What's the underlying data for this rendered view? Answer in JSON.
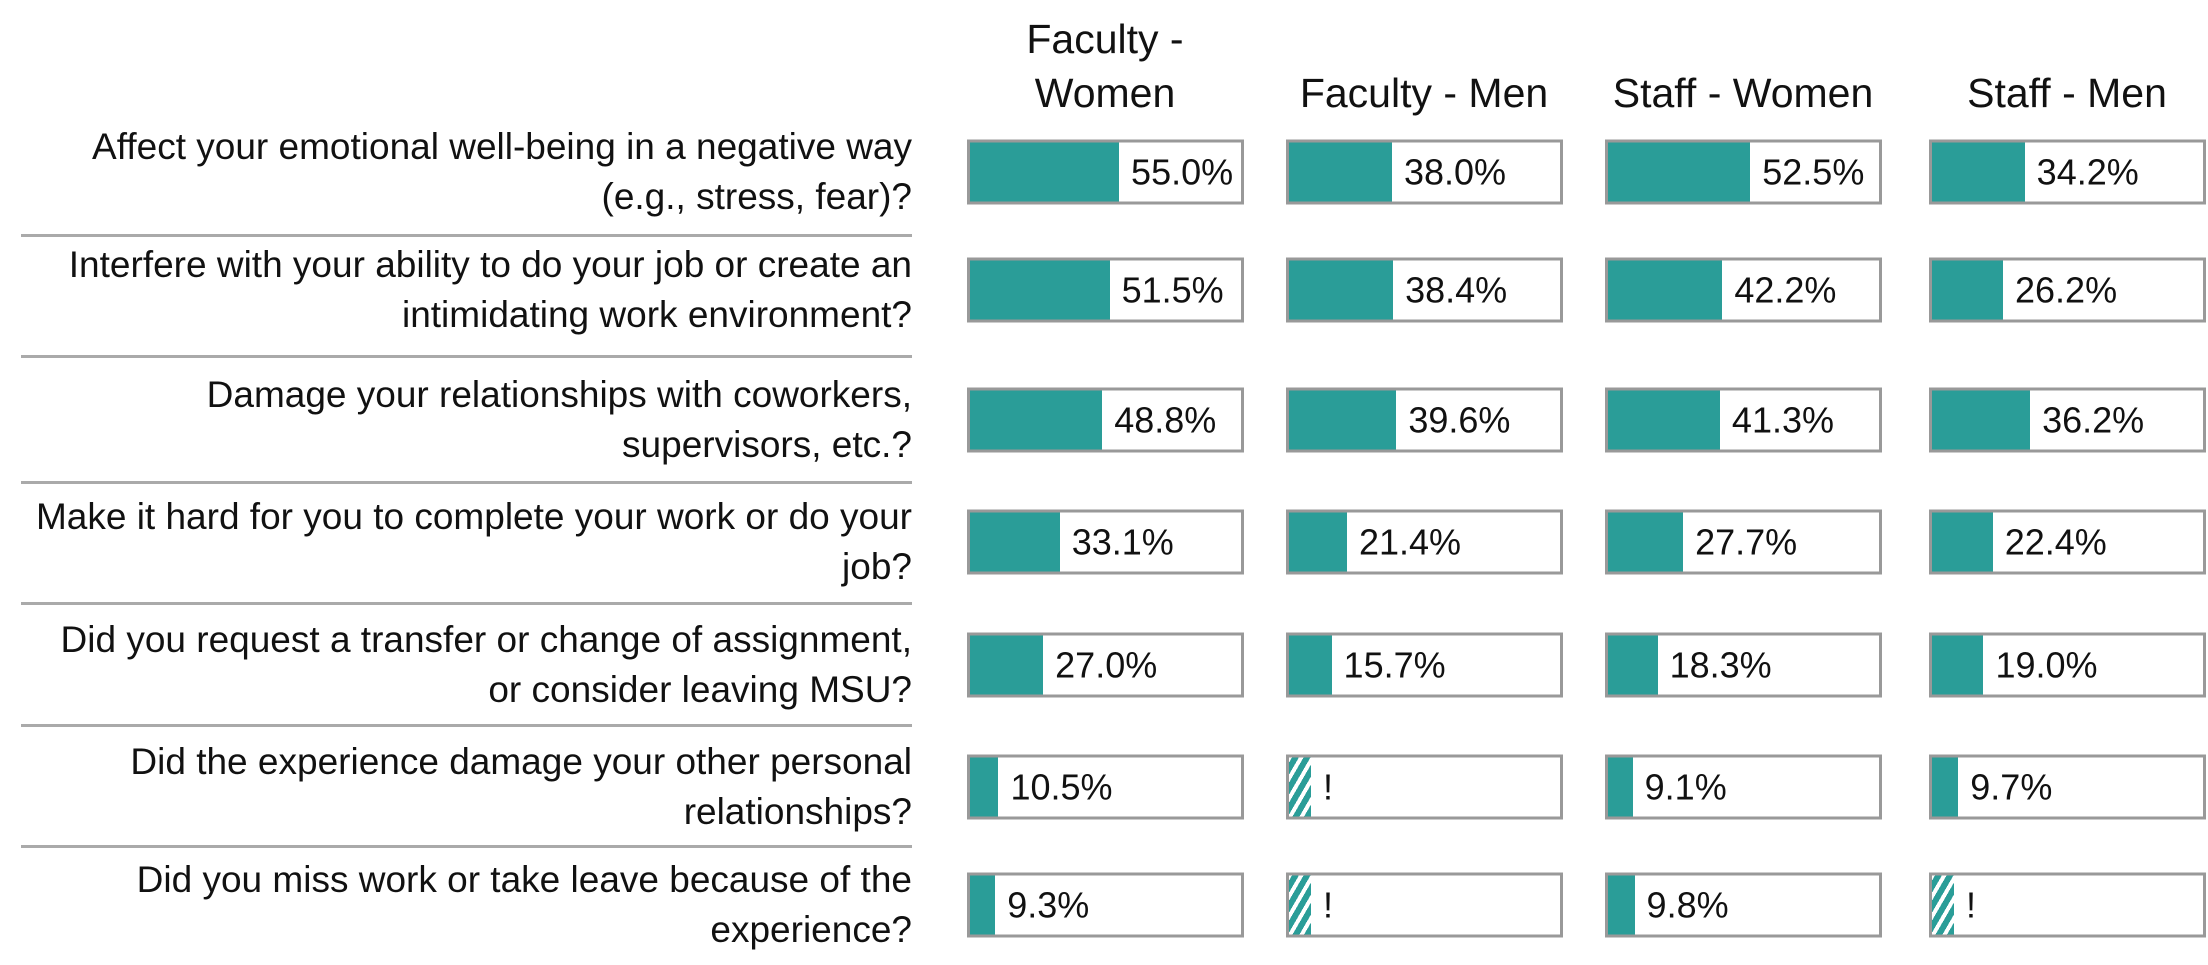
{
  "chart_data": {
    "type": "bar",
    "orientation": "horizontal",
    "xlim": [
      0,
      100
    ],
    "categories": [
      "Affect your emotional well-being in a negative way (e.g., stress, fear)?",
      "Interfere with your ability to do your job or create an intimidating work environment?",
      "Damage your relationships with coworkers, supervisors, etc.?",
      "Make it hard for you to complete your work or do your job?",
      "Did you request a transfer or change of assignment, or consider leaving MSU?",
      "Did the experience damage your other personal relationships?",
      "Did you miss work or take leave because of the experience?"
    ],
    "series": [
      {
        "name": "Faculty - Women",
        "color": "#2a9d98",
        "values": [
          55.0,
          51.5,
          48.8,
          33.1,
          27.0,
          10.5,
          9.3
        ],
        "value_labels": [
          "55.0%",
          "51.5%",
          "48.8%",
          "33.1%",
          "27.0%",
          "10.5%",
          "9.3%"
        ]
      },
      {
        "name": "Faculty - Men",
        "color": "#2a9d98",
        "values": [
          38.0,
          38.4,
          39.6,
          21.4,
          15.7,
          null,
          null
        ],
        "value_labels": [
          "38.0%",
          "38.4%",
          "39.6%",
          "21.4%",
          "15.7%",
          "!",
          "!"
        ]
      },
      {
        "name": "Staff - Women",
        "color": "#2a9d98",
        "values": [
          52.5,
          42.2,
          41.3,
          27.7,
          18.3,
          9.1,
          9.8
        ],
        "value_labels": [
          "52.5%",
          "42.2%",
          "41.3%",
          "27.7%",
          "18.3%",
          "9.1%",
          "9.8%"
        ]
      },
      {
        "name": "Staff - Men",
        "color": "#2a9d98",
        "values": [
          34.2,
          26.2,
          36.2,
          22.4,
          19.0,
          9.7,
          null
        ],
        "value_labels": [
          "34.2%",
          "26.2%",
          "36.2%",
          "22.4%",
          "19.0%",
          "9.7%",
          "!"
        ]
      }
    ]
  }
}
